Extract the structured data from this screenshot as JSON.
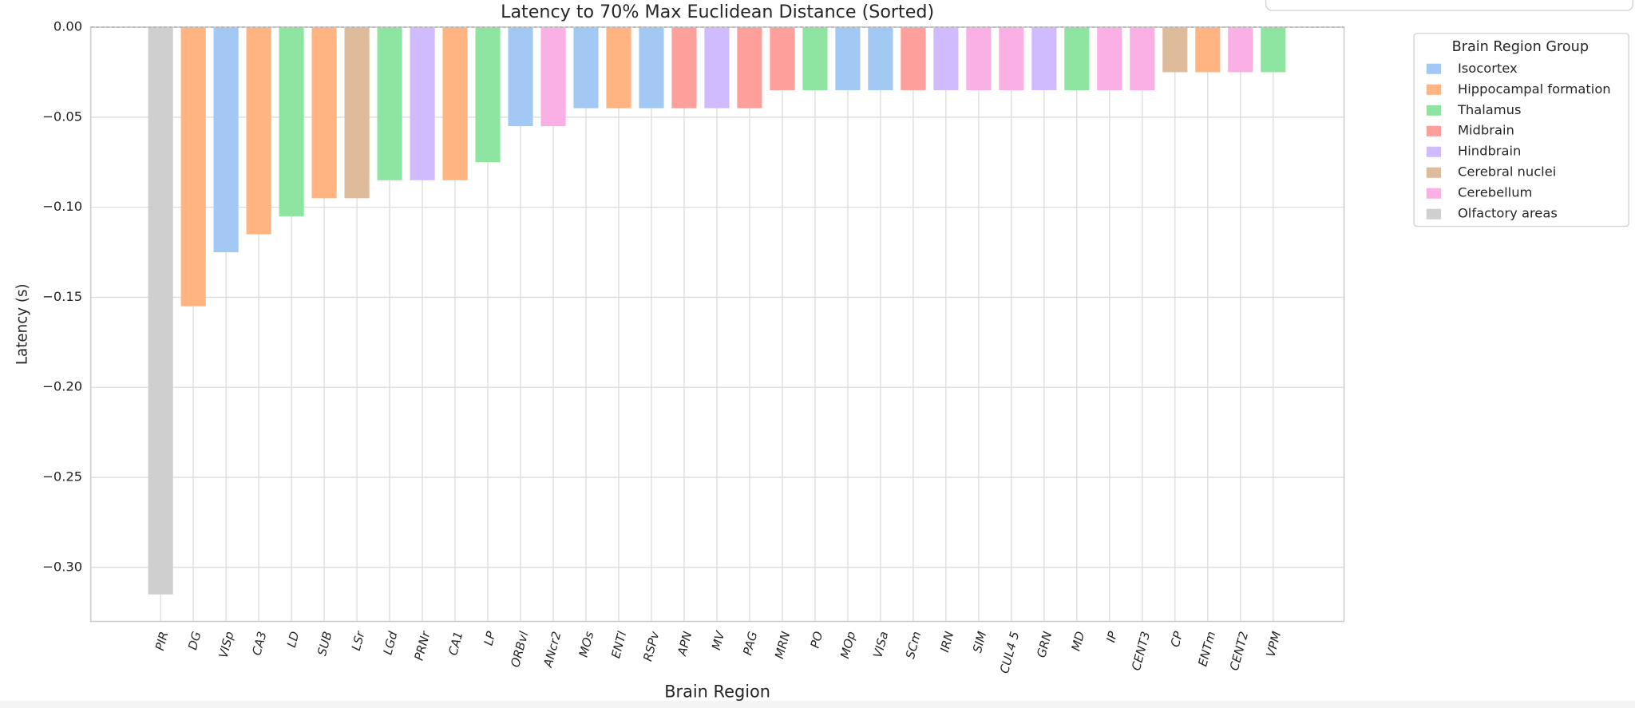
{
  "chart_data": {
    "type": "bar",
    "title": "Latency to 70% Max Euclidean Distance (Sorted)",
    "x_label": "Brain Region",
    "y_label": "Latency (s)",
    "categories": [
      "PIR",
      "DG",
      "VISp",
      "CA3",
      "LD",
      "SUB",
      "LSr",
      "LGd",
      "PRNr",
      "CA1",
      "LP",
      "ORBvl",
      "ANcr2",
      "MOs",
      "ENTl",
      "RSPv",
      "APN",
      "MV",
      "PAG",
      "MRN",
      "PO",
      "MOp",
      "VISa",
      "SCm",
      "IRN",
      "SIM",
      "CUL4 5",
      "GRN",
      "MD",
      "IP",
      "CENT3",
      "CP",
      "ENTm",
      "CENT2",
      "VPM"
    ],
    "values": [
      -0.315,
      -0.155,
      -0.125,
      -0.115,
      -0.105,
      -0.095,
      -0.095,
      -0.085,
      -0.085,
      -0.085,
      -0.075,
      -0.055,
      -0.055,
      -0.045,
      -0.045,
      -0.045,
      -0.045,
      -0.045,
      -0.045,
      -0.035,
      -0.035,
      -0.035,
      -0.035,
      -0.035,
      -0.035,
      -0.035,
      -0.035,
      -0.035,
      -0.035,
      -0.035,
      -0.035,
      -0.025,
      -0.025,
      -0.025,
      -0.025
    ],
    "colors": [
      "#cfcfcf",
      "#ffb482",
      "#a1c9f4",
      "#ffb482",
      "#8de5a1",
      "#ffb482",
      "#debb9b",
      "#8de5a1",
      "#d0bbff",
      "#ffb482",
      "#8de5a1",
      "#a1c9f4",
      "#fab0e4",
      "#a1c9f4",
      "#ffb482",
      "#a1c9f4",
      "#ff9f9b",
      "#d0bbff",
      "#ff9f9b",
      "#ff9f9b",
      "#8de5a1",
      "#a1c9f4",
      "#a1c9f4",
      "#ff9f9b",
      "#d0bbff",
      "#fab0e4",
      "#fab0e4",
      "#d0bbff",
      "#8de5a1",
      "#fab0e4",
      "#fab0e4",
      "#debb9b",
      "#ffb482",
      "#fab0e4",
      "#8de5a1"
    ],
    "ylim": [
      -0.33,
      0
    ],
    "yticks": [
      {
        "value": 0,
        "label": "0.00"
      },
      {
        "value": -0.05,
        "label": "−0.05"
      },
      {
        "value": -0.1,
        "label": "−0.10"
      },
      {
        "value": -0.15,
        "label": "−0.15"
      },
      {
        "value": -0.2,
        "label": "−0.20"
      },
      {
        "value": -0.25,
        "label": "−0.25"
      },
      {
        "value": -0.3,
        "label": "−0.30"
      }
    ],
    "grid": true,
    "legend": {
      "title": "Brain Region Group",
      "position": "upper right outside",
      "items": [
        {
          "name": "Isocortex",
          "color": "#a1c9f4"
        },
        {
          "name": "Hippocampal formation",
          "color": "#ffb482"
        },
        {
          "name": "Thalamus",
          "color": "#8de5a1"
        },
        {
          "name": "Midbrain",
          "color": "#ff9f9b"
        },
        {
          "name": "Hindbrain",
          "color": "#d0bbff"
        },
        {
          "name": "Cerebral nuclei",
          "color": "#debb9b"
        },
        {
          "name": "Cerebellum",
          "color": "#fab0e4"
        },
        {
          "name": "Olfactory areas",
          "color": "#cfcfcf"
        }
      ]
    }
  }
}
